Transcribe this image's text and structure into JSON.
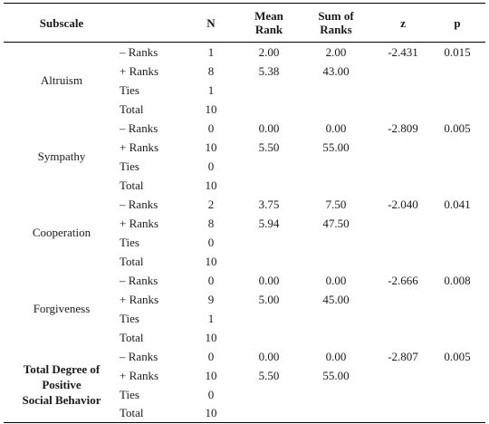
{
  "header": {
    "subscale": "Subscale",
    "n": "N",
    "mean_rank_1": "Mean",
    "mean_rank_2": "Rank",
    "sum_ranks_1": "Sum of",
    "sum_ranks_2": "Ranks",
    "z": "z",
    "p": "p"
  },
  "groups": [
    {
      "name": "Altruism",
      "rows": [
        {
          "rank": "– Ranks",
          "n": "1",
          "mean": "2.00",
          "sum": "2.00",
          "z": "-2.431",
          "p": "0.015"
        },
        {
          "rank": "+ Ranks",
          "n": "8",
          "mean": "5.38",
          "sum": "43.00",
          "z": "",
          "p": ""
        },
        {
          "rank": "Ties",
          "n": "1",
          "mean": "",
          "sum": "",
          "z": "",
          "p": ""
        },
        {
          "rank": "Total",
          "n": "10",
          "mean": "",
          "sum": "",
          "z": "",
          "p": ""
        }
      ]
    },
    {
      "name": "Sympathy",
      "rows": [
        {
          "rank": "– Ranks",
          "n": "0",
          "mean": "0.00",
          "sum": "0.00",
          "z": "-2.809",
          "p": "0.005"
        },
        {
          "rank": "+ Ranks",
          "n": "10",
          "mean": "5.50",
          "sum": "55.00",
          "z": "",
          "p": ""
        },
        {
          "rank": "Ties",
          "n": "0",
          "mean": "",
          "sum": "",
          "z": "",
          "p": ""
        },
        {
          "rank": "Total",
          "n": "10",
          "mean": "",
          "sum": "",
          "z": "",
          "p": ""
        }
      ]
    },
    {
      "name": "Cooperation",
      "rows": [
        {
          "rank": "– Ranks",
          "n": "2",
          "mean": "3.75",
          "sum": "7.50",
          "z": "-2.040",
          "p": "0.041"
        },
        {
          "rank": "+ Ranks",
          "n": "8",
          "mean": "5.94",
          "sum": "47.50",
          "z": "",
          "p": ""
        },
        {
          "rank": "Ties",
          "n": "0",
          "mean": "",
          "sum": "",
          "z": "",
          "p": ""
        },
        {
          "rank": "Total",
          "n": "10",
          "mean": "",
          "sum": "",
          "z": "",
          "p": ""
        }
      ]
    },
    {
      "name": "Forgiveness",
      "rows": [
        {
          "rank": "– Ranks",
          "n": "0",
          "mean": "0.00",
          "sum": "0.00",
          "z": "-2.666",
          "p": "0.008"
        },
        {
          "rank": "+ Ranks",
          "n": "9",
          "mean": "5.00",
          "sum": "45.00",
          "z": "",
          "p": ""
        },
        {
          "rank": "Ties",
          "n": "1",
          "mean": "",
          "sum": "",
          "z": "",
          "p": ""
        },
        {
          "rank": "Total",
          "n": "10",
          "mean": "",
          "sum": "",
          "z": "",
          "p": ""
        }
      ]
    },
    {
      "name_lines": [
        "Total Degree of",
        "Positive",
        "Social Behavior"
      ],
      "rows": [
        {
          "rank": "– Ranks",
          "n": "0",
          "mean": "0.00",
          "sum": "0.00",
          "z": "-2.807",
          "p": "0.005"
        },
        {
          "rank": "+ Ranks",
          "n": "10",
          "mean": "5.50",
          "sum": "55.00",
          "z": "",
          "p": ""
        },
        {
          "rank": "Ties",
          "n": "0",
          "mean": "",
          "sum": "",
          "z": "",
          "p": ""
        },
        {
          "rank": "Total",
          "n": "10",
          "mean": "",
          "sum": "",
          "z": "",
          "p": ""
        }
      ]
    }
  ]
}
